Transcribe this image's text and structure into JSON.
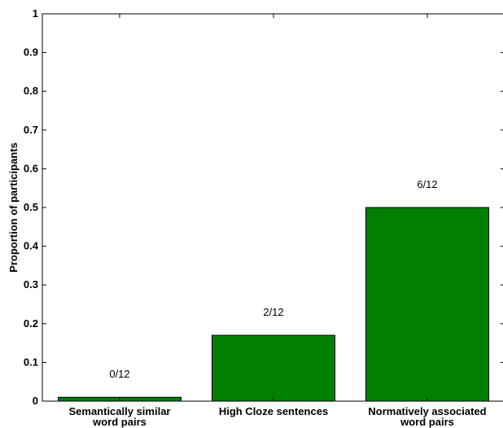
{
  "chart_data": {
    "type": "bar",
    "ylabel": "Proportion of participants",
    "ylim": [
      0,
      1
    ],
    "yticks": [
      0,
      0.1,
      0.2,
      0.3,
      0.4,
      0.5,
      0.6,
      0.7,
      0.8,
      0.9,
      1
    ],
    "ytick_labels": [
      "0",
      "0.1",
      "0.2",
      "0.3",
      "0.4",
      "0.5",
      "0.6",
      "0.7",
      "0.8",
      "0.9",
      "1"
    ],
    "categories": [
      [
        "Semantically similar",
        "word pairs"
      ],
      [
        "High Cloze sentences"
      ],
      [
        "Normatively associated",
        "word pairs"
      ]
    ],
    "values": [
      0.01,
      0.17,
      0.5
    ],
    "data_labels": [
      "0/12",
      "2/12",
      "6/12"
    ],
    "bar_color": "#007f00",
    "grid": false
  }
}
